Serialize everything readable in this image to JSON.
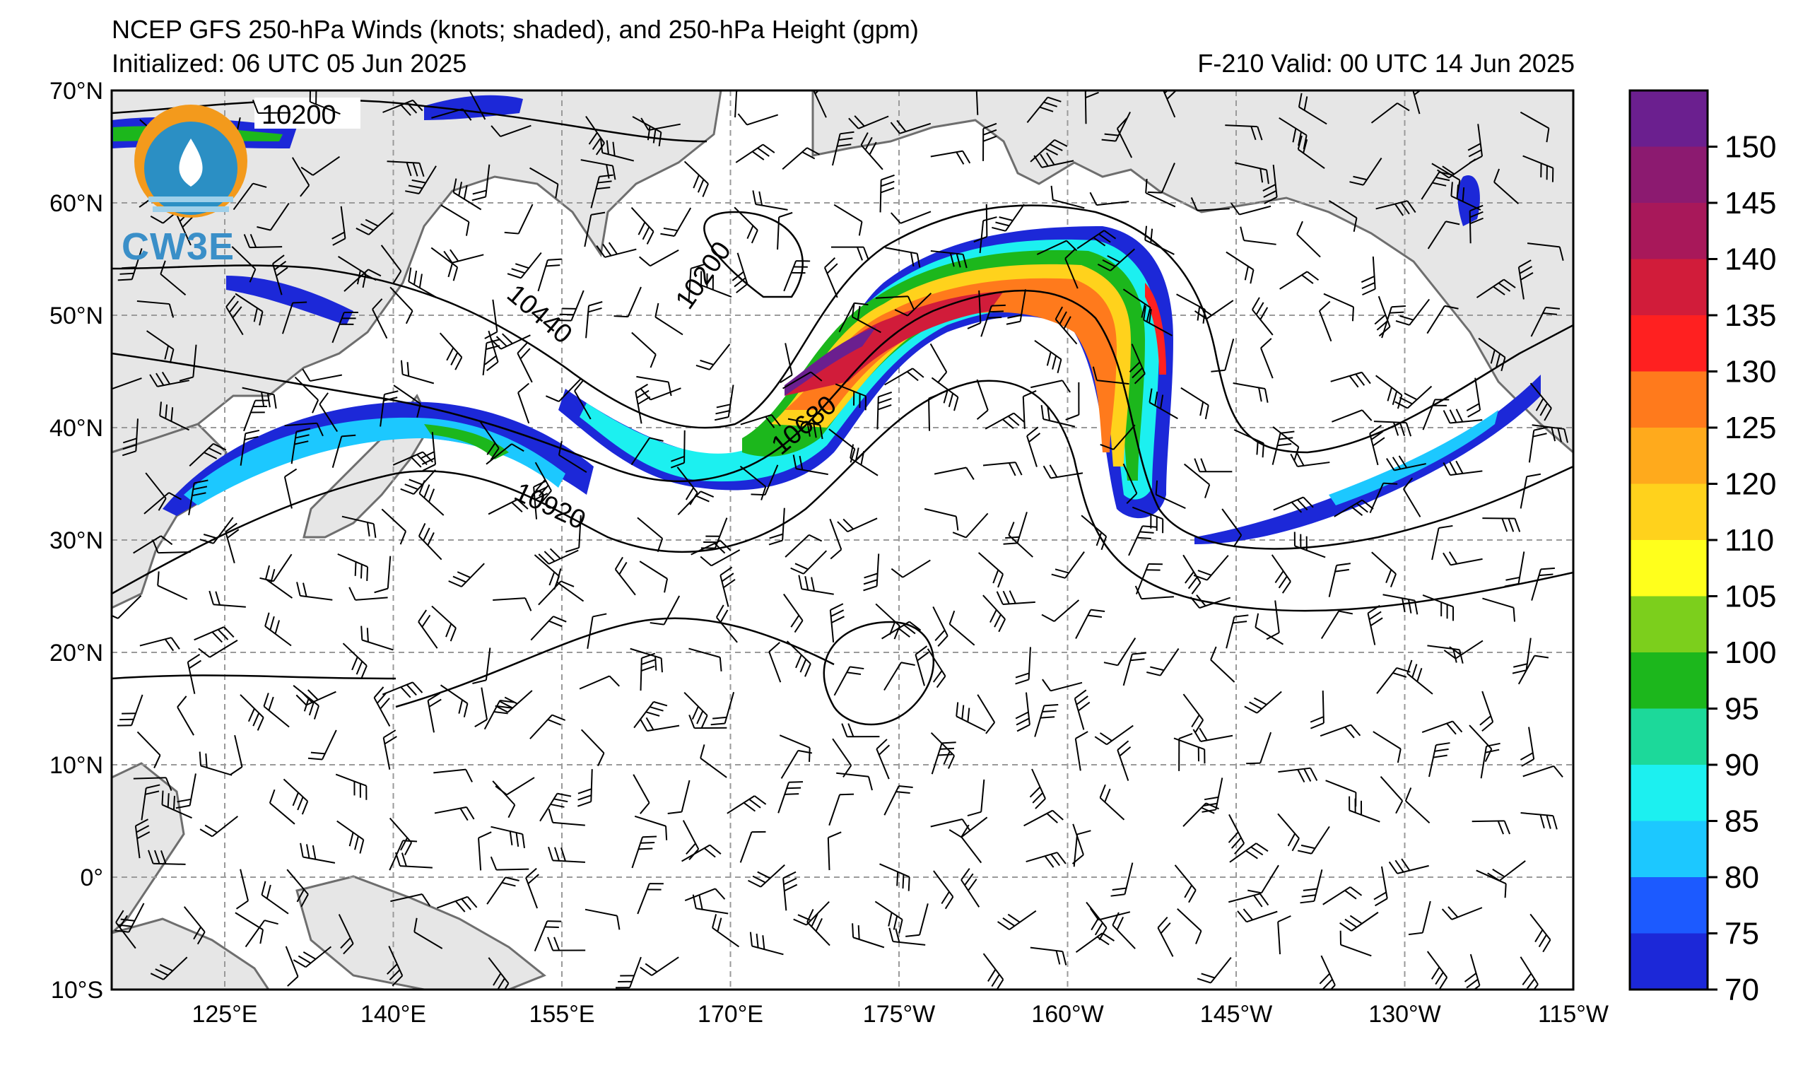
{
  "header": {
    "title": "NCEP GFS 250-hPa Winds (knots; shaded), and 250-hPa Height (gpm)",
    "initialized": "Initialized: 06 UTC 05 Jun 2025",
    "valid": "F-210  Valid: 00 UTC 14 Jun 2025"
  },
  "logo": {
    "text": "CW3E"
  },
  "axes": {
    "lat_labels": [
      "70°N",
      "60°N",
      "50°N",
      "40°N",
      "30°N",
      "20°N",
      "10°N",
      "0°",
      "10°S"
    ],
    "lon_labels": [
      "125°E",
      "140°E",
      "155°E",
      "170°E",
      "175°W",
      "160°W",
      "145°W",
      "130°W",
      "115°W"
    ]
  },
  "contour_labels": [
    "10200",
    "10200",
    "10440",
    "10680",
    "10920"
  ],
  "colorbar": {
    "labels": [
      "150",
      "145",
      "140",
      "135",
      "130",
      "125",
      "120",
      "110",
      "105",
      "100",
      "95",
      "90",
      "85",
      "80",
      "75",
      "70"
    ],
    "colors": [
      "#6b1f8f",
      "#8c1a70",
      "#a8185a",
      "#d11c3a",
      "#ff2020",
      "#ff7a1c",
      "#ffaa1c",
      "#ffd21c",
      "#ffff1c",
      "#7ccf1c",
      "#1cb71c",
      "#1cd99a",
      "#1cf0f0",
      "#1cc8ff",
      "#1c5aff",
      "#1c28d8"
    ]
  },
  "colors": {
    "land": "#e6e6e6",
    "coast": "#6e6e6e",
    "grid": "#9a9a9a"
  }
}
